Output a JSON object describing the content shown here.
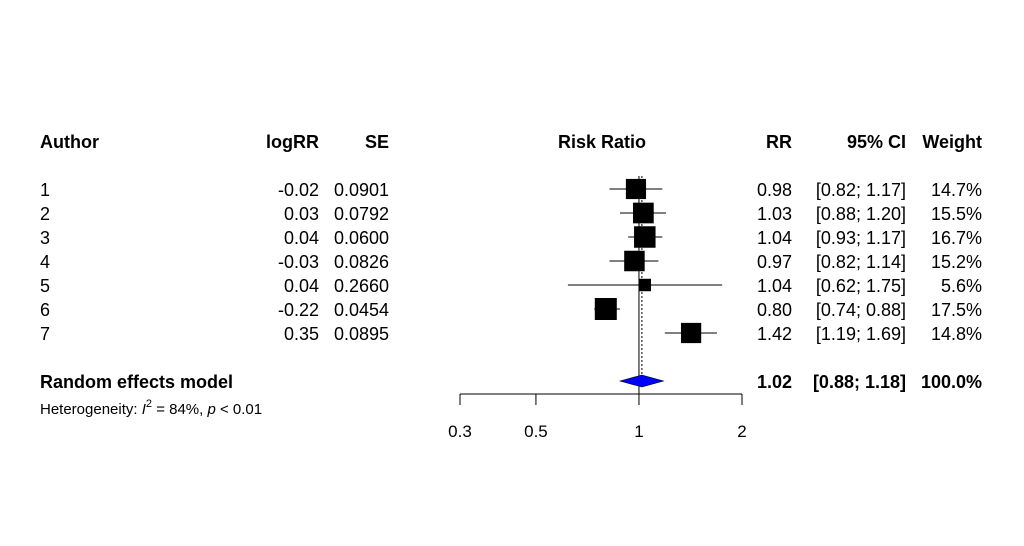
{
  "chart_data": {
    "type": "forest",
    "headers": {
      "author": "Author",
      "logrr": "logRR",
      "se": "SE",
      "plot": "Risk Ratio",
      "rr": "RR",
      "ci": "95% CI",
      "weight": "Weight"
    },
    "studies": [
      {
        "author": "1",
        "logrr": "-0.02",
        "se": "0.0901",
        "rr": 0.98,
        "lower": 0.82,
        "upper": 1.17,
        "rr_text": "0.98",
        "ci_text": "[0.82; 1.17]",
        "weight": 14.7,
        "weight_text": "14.7%"
      },
      {
        "author": "2",
        "logrr": "0.03",
        "se": "0.0792",
        "rr": 1.03,
        "lower": 0.88,
        "upper": 1.2,
        "rr_text": "1.03",
        "ci_text": "[0.88; 1.20]",
        "weight": 15.5,
        "weight_text": "15.5%"
      },
      {
        "author": "3",
        "logrr": "0.04",
        "se": "0.0600",
        "rr": 1.04,
        "lower": 0.93,
        "upper": 1.17,
        "rr_text": "1.04",
        "ci_text": "[0.93; 1.17]",
        "weight": 16.7,
        "weight_text": "16.7%"
      },
      {
        "author": "4",
        "logrr": "-0.03",
        "se": "0.0826",
        "rr": 0.97,
        "lower": 0.82,
        "upper": 1.14,
        "rr_text": "0.97",
        "ci_text": "[0.82; 1.14]",
        "weight": 15.2,
        "weight_text": "15.2%"
      },
      {
        "author": "5",
        "logrr": "0.04",
        "se": "0.2660",
        "rr": 1.04,
        "lower": 0.62,
        "upper": 1.75,
        "rr_text": "1.04",
        "ci_text": "[0.62; 1.75]",
        "weight": 5.6,
        "weight_text": "5.6%"
      },
      {
        "author": "6",
        "logrr": "-0.22",
        "se": "0.0454",
        "rr": 0.8,
        "lower": 0.74,
        "upper": 0.88,
        "rr_text": "0.80",
        "ci_text": "[0.74; 0.88]",
        "weight": 17.5,
        "weight_text": "17.5%"
      },
      {
        "author": "7",
        "logrr": "0.35",
        "se": "0.0895",
        "rr": 1.42,
        "lower": 1.19,
        "upper": 1.69,
        "rr_text": "1.42",
        "ci_text": "[1.19; 1.69]",
        "weight": 14.8,
        "weight_text": "14.8%"
      }
    ],
    "pooled": {
      "label": "Random effects model",
      "rr": 1.02,
      "lower": 0.88,
      "upper": 1.18,
      "rr_text": "1.02",
      "ci_text": "[0.88; 1.18]",
      "weight_text": "100.0%",
      "color": "#0000ff"
    },
    "heterogeneity": {
      "prefix": "Heterogeneity: ",
      "stat": "I",
      "sup": "2",
      "mid": " = 84%, ",
      "p": "p",
      "p_value": " < 0.01"
    },
    "x_axis": {
      "scale": "log",
      "range": [
        0.3,
        2
      ],
      "ticks": [
        0.3,
        0.5,
        1,
        2
      ],
      "tick_labels": [
        "0.3",
        "0.5",
        "1",
        "2"
      ],
      "reference_line": 1
    },
    "marker_color": "#000000"
  }
}
